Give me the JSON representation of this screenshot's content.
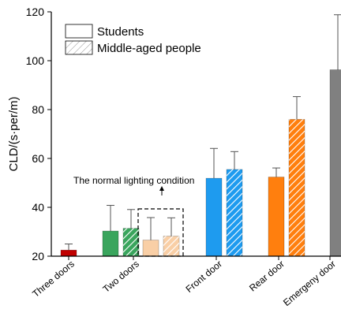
{
  "chart_data": {
    "type": "bar",
    "ylabel": "CLD/(s·per/m)",
    "ylim": [
      20,
      120
    ],
    "yticks": [
      20,
      40,
      60,
      80,
      100,
      120
    ],
    "categories": [
      "Three doors",
      "Two doors",
      "Front door",
      "Rear door",
      "Emergeny door"
    ],
    "legend": {
      "placement": "top-left",
      "items": [
        {
          "label": "Students",
          "pattern": "solid"
        },
        {
          "label": "Middle-aged people",
          "pattern": "hatched"
        }
      ]
    },
    "bars": [
      {
        "category": "Three doors",
        "group": "Students",
        "value": 22.5,
        "error": 25.0,
        "color": "#c00000",
        "hatched": false
      },
      {
        "category": "Two doors",
        "group": "Students",
        "value": 30.3,
        "error": 40.8,
        "color": "#3aa55d",
        "hatched": false
      },
      {
        "category": "Two doors",
        "group": "Middle-aged people",
        "value": 31.4,
        "error": 39.1,
        "color": "#3aa55d",
        "hatched": true
      },
      {
        "category": "Two doors",
        "group": "Students",
        "condition": "The normal lighting condition",
        "value": 26.6,
        "error": 35.8,
        "color": "#f9cfa6",
        "hatched": false
      },
      {
        "category": "Two doors",
        "group": "Middle-aged people",
        "condition": "The normal lighting condition",
        "value": 28.2,
        "error": 35.7,
        "color": "#f9cfa6",
        "hatched": true
      },
      {
        "category": "Front door",
        "group": "Students",
        "value": 51.9,
        "error": 64.1,
        "color": "#1e9bef",
        "hatched": false
      },
      {
        "category": "Front door",
        "group": "Middle-aged people",
        "value": 55.5,
        "error": 62.8,
        "color": "#1e9bef",
        "hatched": true
      },
      {
        "category": "Rear door",
        "group": "Students",
        "value": 52.4,
        "error": 56.1,
        "color": "#ff7f0e",
        "hatched": false
      },
      {
        "category": "Rear door",
        "group": "Middle-aged people",
        "value": 76.0,
        "error": 85.3,
        "color": "#ff7f0e",
        "hatched": true
      },
      {
        "category": "Emergeny door",
        "group": "Students",
        "value": 96.3,
        "error": 118.8,
        "color": "#808080",
        "hatched": false
      }
    ],
    "annotations": [
      {
        "text": "The normal lighting condition"
      }
    ]
  }
}
